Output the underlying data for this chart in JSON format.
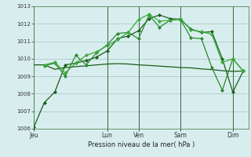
{
  "background_color": "#d8eeee",
  "grid_color": "#aacccc",
  "line_color_dark": "#1a5c1a",
  "line_color_mid": "#2d882d",
  "line_color_light": "#3aaa3a",
  "xlabel": "Pression niveau de la mer( hPa )",
  "ylim": [
    1006,
    1013
  ],
  "yticks": [
    1006,
    1007,
    1008,
    1009,
    1010,
    1011,
    1012,
    1013
  ],
  "day_labels": [
    "Jeu",
    "Lun",
    "Ven",
    "Sam",
    "Dim"
  ],
  "day_positions": [
    0,
    14,
    20,
    28,
    38
  ],
  "xlim": [
    0,
    41
  ],
  "series1": {
    "x": [
      0,
      2,
      4,
      6,
      8,
      10,
      12,
      14,
      16,
      18,
      20,
      22,
      24,
      26,
      28,
      30,
      32,
      34,
      36,
      38,
      40
    ],
    "y": [
      1006.1,
      1007.5,
      1008.1,
      1009.65,
      1009.75,
      1009.9,
      1010.1,
      1010.45,
      1011.15,
      1011.3,
      1011.6,
      1012.3,
      1012.5,
      1012.3,
      1012.25,
      1011.7,
      1011.5,
      1011.55,
      1010.0,
      1008.1,
      1009.3
    ]
  },
  "series2": {
    "x": [
      2,
      4,
      6,
      8,
      10,
      12,
      14,
      16,
      18,
      20,
      22,
      24,
      26,
      28,
      30,
      32,
      34,
      36,
      38,
      40
    ],
    "y": [
      1009.6,
      1009.75,
      1009.0,
      1010.2,
      1009.65,
      1010.35,
      1010.8,
      1011.45,
      1011.5,
      1011.15,
      1012.5,
      1011.8,
      1012.2,
      1012.25,
      1011.2,
      1011.15,
      1009.5,
      1008.2,
      1010.0,
      1009.3
    ]
  },
  "series3": {
    "x": [
      2,
      4,
      6,
      8,
      10,
      12,
      14,
      16,
      18,
      20,
      22,
      24,
      26,
      28,
      30,
      32,
      34,
      36,
      38,
      40
    ],
    "y": [
      1009.65,
      1009.8,
      1009.2,
      1009.75,
      1010.2,
      1010.4,
      1010.75,
      1011.1,
      1011.5,
      1012.25,
      1012.55,
      1012.15,
      1012.2,
      1012.3,
      1011.65,
      1011.55,
      1011.4,
      1009.8,
      1010.0,
      1009.3
    ]
  },
  "series4": {
    "x": [
      0,
      2,
      4,
      6,
      8,
      10,
      12,
      14,
      16,
      18,
      20,
      22,
      24,
      26,
      28,
      30,
      32,
      34,
      36,
      38,
      40
    ],
    "y": [
      1009.65,
      1009.65,
      1009.4,
      1009.5,
      1009.55,
      1009.6,
      1009.65,
      1009.7,
      1009.72,
      1009.7,
      1009.65,
      1009.62,
      1009.58,
      1009.54,
      1009.5,
      1009.48,
      1009.42,
      1009.38,
      1009.32,
      1009.28,
      1009.3
    ]
  }
}
